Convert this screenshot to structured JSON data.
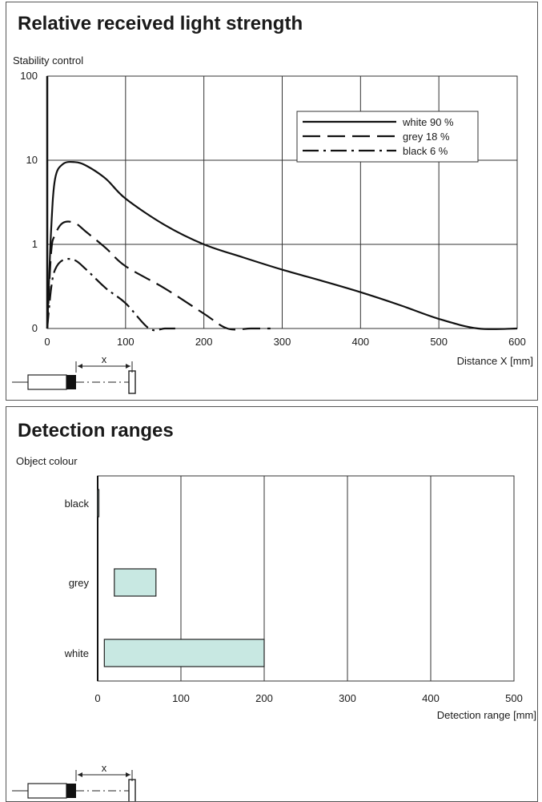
{
  "chart_data": [
    {
      "type": "line",
      "title": "Relative received light strength",
      "ylabel": "Stability control",
      "xlabel": "Distance X [mm]",
      "y_scale": "log",
      "y_ticks": [
        "0",
        "1",
        "10",
        "100"
      ],
      "x_ticks": [
        "0",
        "100",
        "200",
        "300",
        "400",
        "500",
        "600"
      ],
      "xlim": [
        0,
        600
      ],
      "grid": true,
      "legend_position": "top-right",
      "series": [
        {
          "name": "white 90 %",
          "style": "solid",
          "x": [
            0,
            5,
            10,
            20,
            35,
            50,
            75,
            100,
            150,
            200,
            250,
            300,
            350,
            400,
            450,
            500,
            550,
            600
          ],
          "y": [
            0,
            1.5,
            6,
            9,
            9.5,
            8.6,
            6,
            3.5,
            1.7,
            1.0,
            0.7,
            0.5,
            0.37,
            0.27,
            0.19,
            0.13,
            0.05,
            0
          ]
        },
        {
          "name": "grey 18 %",
          "style": "dashed",
          "x": [
            0,
            5,
            10,
            20,
            35,
            50,
            75,
            100,
            150,
            200,
            230,
            260,
            285
          ],
          "y": [
            0,
            0.8,
            1.3,
            1.8,
            1.8,
            1.4,
            0.9,
            0.55,
            0.3,
            0.15,
            0.09,
            0.04,
            0
          ]
        },
        {
          "name": "black 6 %",
          "style": "dashdot",
          "x": [
            0,
            5,
            10,
            20,
            35,
            50,
            75,
            100,
            130,
            150,
            165
          ],
          "y": [
            0,
            0.3,
            0.5,
            0.65,
            0.65,
            0.5,
            0.3,
            0.2,
            0.1,
            0.04,
            0
          ]
        }
      ],
      "diagram_label": "x"
    },
    {
      "type": "bar",
      "orientation": "horizontal",
      "title": "Detection ranges",
      "ylabel": "Object colour",
      "xlabel": "Detection range [mm]",
      "xlim": [
        0,
        500
      ],
      "x_ticks": [
        "0",
        "100",
        "200",
        "300",
        "400",
        "500"
      ],
      "categories": [
        "black",
        "grey",
        "white"
      ],
      "ranges": [
        [
          0,
          1
        ],
        [
          20,
          70
        ],
        [
          8,
          200
        ]
      ],
      "bar_color": "#c8e8e2",
      "grid": true,
      "diagram_label": "x"
    }
  ]
}
